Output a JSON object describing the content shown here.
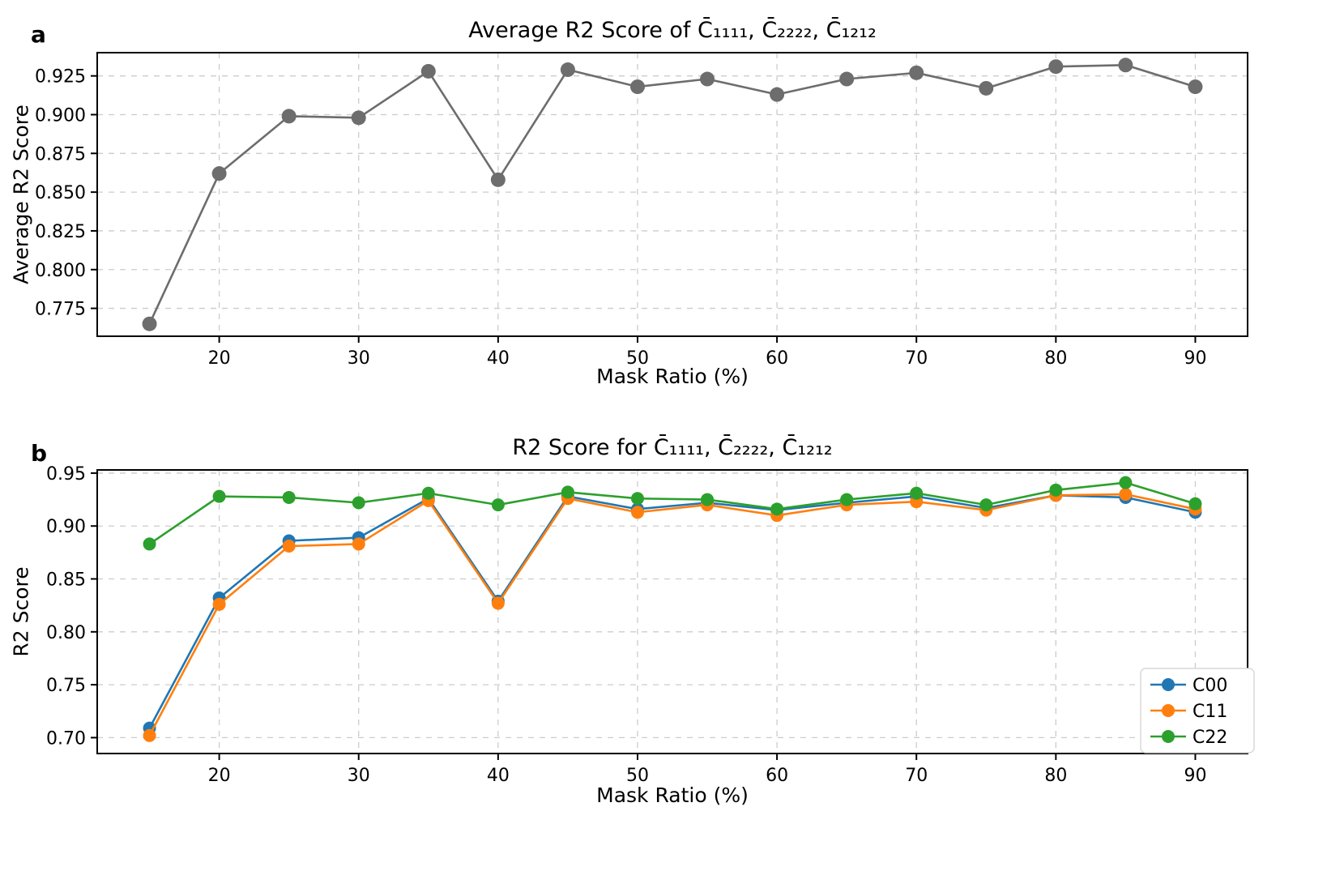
{
  "figure": {
    "background": "#ffffff"
  },
  "chart_data": [
    {
      "type": "line",
      "panel_label": "a",
      "title": "Average R2 Score of C̄₁₁₁₁, C̄₂₂₂₂, C̄₁₂₁₂",
      "xlabel": "Mask Ratio (%)",
      "ylabel": "Average R2 Score",
      "grid": true,
      "legend": false,
      "x": [
        15,
        20,
        25,
        30,
        35,
        40,
        45,
        50,
        55,
        60,
        65,
        70,
        75,
        80,
        85,
        90
      ],
      "xlim": [
        11.25,
        93.75
      ],
      "ylim": [
        0.757,
        0.94
      ],
      "xticks": [
        20,
        30,
        40,
        50,
        60,
        70,
        80,
        90
      ],
      "xtick_labels": [
        "20",
        "30",
        "40",
        "50",
        "60",
        "70",
        "80",
        "90"
      ],
      "yticks": [
        0.775,
        0.8,
        0.825,
        0.85,
        0.875,
        0.9,
        0.925
      ],
      "ytick_labels": [
        "0.775",
        "0.800",
        "0.825",
        "0.850",
        "0.875",
        "0.900",
        "0.925"
      ],
      "series": [
        {
          "name": "Average",
          "color": "#6d6d6d",
          "values": [
            0.765,
            0.862,
            0.899,
            0.898,
            0.928,
            0.858,
            0.929,
            0.918,
            0.923,
            0.913,
            0.923,
            0.927,
            0.917,
            0.931,
            0.932,
            0.918
          ]
        }
      ]
    },
    {
      "type": "line",
      "panel_label": "b",
      "title": "R2 Score for C̄₁₁₁₁, C̄₂₂₂₂, C̄₁₂₁₂",
      "xlabel": "Mask Ratio (%)",
      "ylabel": "R2 Score",
      "grid": true,
      "legend": {
        "position": "lower right",
        "labels": [
          "C00",
          "C11",
          "C22"
        ]
      },
      "x": [
        15,
        20,
        25,
        30,
        35,
        40,
        45,
        50,
        55,
        60,
        65,
        70,
        75,
        80,
        85,
        90
      ],
      "xlim": [
        11.25,
        93.75
      ],
      "ylim": [
        0.685,
        0.953
      ],
      "xticks": [
        20,
        30,
        40,
        50,
        60,
        70,
        80,
        90
      ],
      "xtick_labels": [
        "20",
        "30",
        "40",
        "50",
        "60",
        "70",
        "80",
        "90"
      ],
      "yticks": [
        0.7,
        0.75,
        0.8,
        0.85,
        0.9,
        0.95
      ],
      "ytick_labels": [
        "0.70",
        "0.75",
        "0.80",
        "0.85",
        "0.90",
        "0.95"
      ],
      "series": [
        {
          "name": "C00",
          "color": "#1f77b4",
          "values": [
            0.709,
            0.832,
            0.886,
            0.889,
            0.926,
            0.829,
            0.928,
            0.916,
            0.922,
            0.915,
            0.922,
            0.928,
            0.917,
            0.929,
            0.927,
            0.913
          ]
        },
        {
          "name": "C11",
          "color": "#ff7f0e",
          "values": [
            0.702,
            0.826,
            0.881,
            0.883,
            0.924,
            0.827,
            0.926,
            0.913,
            0.92,
            0.91,
            0.92,
            0.923,
            0.915,
            0.929,
            0.93,
            0.916
          ]
        },
        {
          "name": "C22",
          "color": "#2ca02c",
          "values": [
            0.883,
            0.928,
            0.927,
            0.922,
            0.931,
            0.92,
            0.932,
            0.926,
            0.925,
            0.916,
            0.925,
            0.931,
            0.92,
            0.934,
            0.941,
            0.921
          ]
        }
      ]
    }
  ]
}
